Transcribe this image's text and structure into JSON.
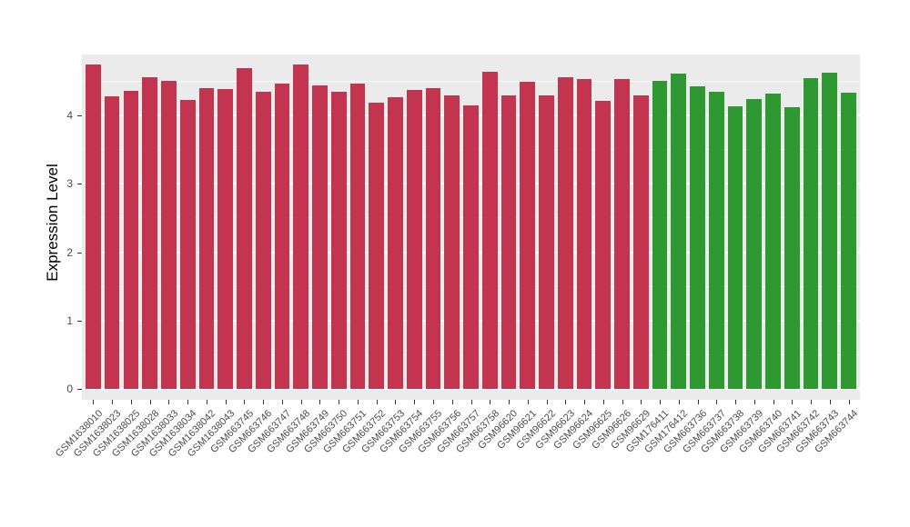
{
  "chart_data": {
    "type": "bar",
    "title": "",
    "xlabel": "",
    "ylabel": "Expression Level",
    "ylim": [
      0,
      4.89
    ],
    "yticks": [
      0,
      1,
      2,
      3,
      4
    ],
    "grid": "on",
    "legend": "none",
    "panel_background": "#EBEBEB",
    "palette": {
      "groupA": "#C3344F",
      "groupB": "#2E9930"
    },
    "categories": [
      "GSM1638010",
      "GSM1638023",
      "GSM1638025",
      "GSM1638028",
      "GSM1638033",
      "GSM1638034",
      "GSM1638042",
      "GSM1638043",
      "GSM663745",
      "GSM663746",
      "GSM663747",
      "GSM663748",
      "GSM663749",
      "GSM663750",
      "GSM663751",
      "GSM663752",
      "GSM663753",
      "GSM663754",
      "GSM663755",
      "GSM663756",
      "GSM663757",
      "GSM663758",
      "GSM96620",
      "GSM96621",
      "GSM96622",
      "GSM96623",
      "GSM96624",
      "GSM96625",
      "GSM96626",
      "GSM96629",
      "GSM176411",
      "GSM176412",
      "GSM663736",
      "GSM663737",
      "GSM663738",
      "GSM663739",
      "GSM663740",
      "GSM663741",
      "GSM663742",
      "GSM663743",
      "GSM663744"
    ],
    "values": [
      4.75,
      4.28,
      4.36,
      4.56,
      4.5,
      4.23,
      4.4,
      4.39,
      4.69,
      4.34,
      4.47,
      4.75,
      4.44,
      4.35,
      4.47,
      4.18,
      4.26,
      4.37,
      4.4,
      4.29,
      4.15,
      4.64,
      4.29,
      4.49,
      4.29,
      4.56,
      4.53,
      4.21,
      4.53,
      4.29,
      4.51,
      4.61,
      4.42,
      4.34,
      4.13,
      4.24,
      4.32,
      4.12,
      4.55,
      4.63,
      4.33
    ],
    "groups": [
      "groupA",
      "groupA",
      "groupA",
      "groupA",
      "groupA",
      "groupA",
      "groupA",
      "groupA",
      "groupA",
      "groupA",
      "groupA",
      "groupA",
      "groupA",
      "groupA",
      "groupA",
      "groupA",
      "groupA",
      "groupA",
      "groupA",
      "groupA",
      "groupA",
      "groupA",
      "groupA",
      "groupA",
      "groupA",
      "groupA",
      "groupA",
      "groupA",
      "groupA",
      "groupA",
      "groupB",
      "groupB",
      "groupB",
      "groupB",
      "groupB",
      "groupB",
      "groupB",
      "groupB",
      "groupB",
      "groupB",
      "groupB"
    ]
  }
}
